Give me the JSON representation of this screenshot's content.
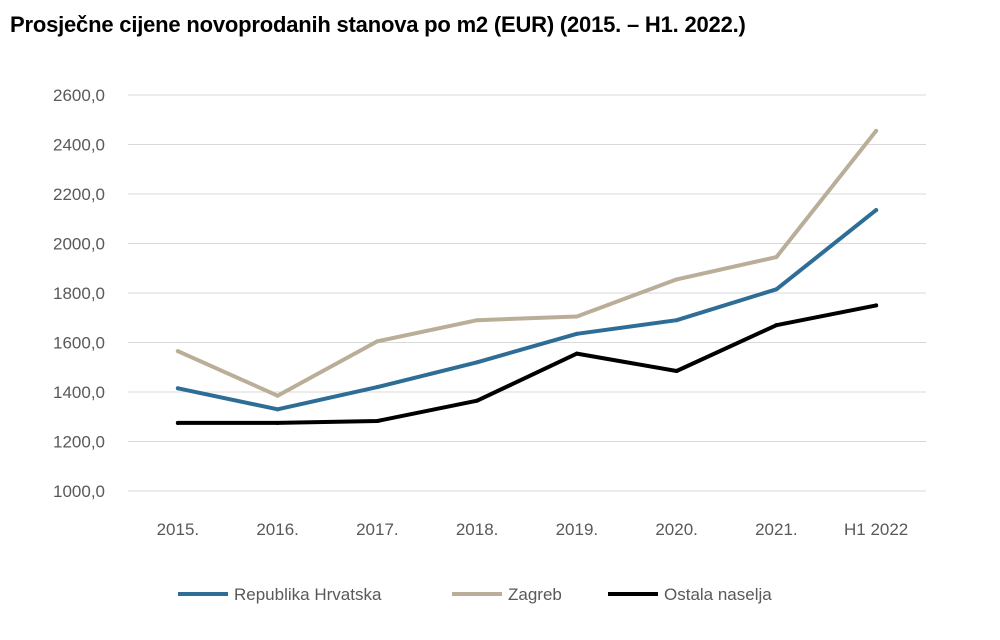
{
  "chart_data": {
    "type": "line",
    "title": "Prosječne cijene novoprodanih stanova po m2 (EUR) (2015. – H1. 2022.)",
    "categories": [
      "2015.",
      "2016.",
      "2017.",
      "2018.",
      "2019.",
      "2020.",
      "2021.",
      "H1 2022"
    ],
    "ylim": [
      1000,
      2600
    ],
    "yticks": [
      "1000,0",
      "1200,0",
      "1400,0",
      "1600,0",
      "1800,0",
      "2000,0",
      "2200,0",
      "2400,0",
      "2600,0"
    ],
    "ytick_values": [
      1000,
      1200,
      1400,
      1600,
      1800,
      2000,
      2200,
      2400,
      2600
    ],
    "grid": true,
    "legend_position": "bottom",
    "series": [
      {
        "name": "Republika Hrvatska",
        "color": "#2E6E96",
        "values": [
          1415,
          1330,
          1420,
          1520,
          1635,
          1690,
          1815,
          2135
        ]
      },
      {
        "name": "Zagreb",
        "color": "#BBAE98",
        "values": [
          1565,
          1385,
          1605,
          1690,
          1705,
          1855,
          1945,
          2455
        ]
      },
      {
        "name": "Ostala naselja",
        "color": "#000000",
        "values": [
          1275,
          1275,
          1283,
          1365,
          1555,
          1485,
          1670,
          1750
        ]
      }
    ]
  }
}
